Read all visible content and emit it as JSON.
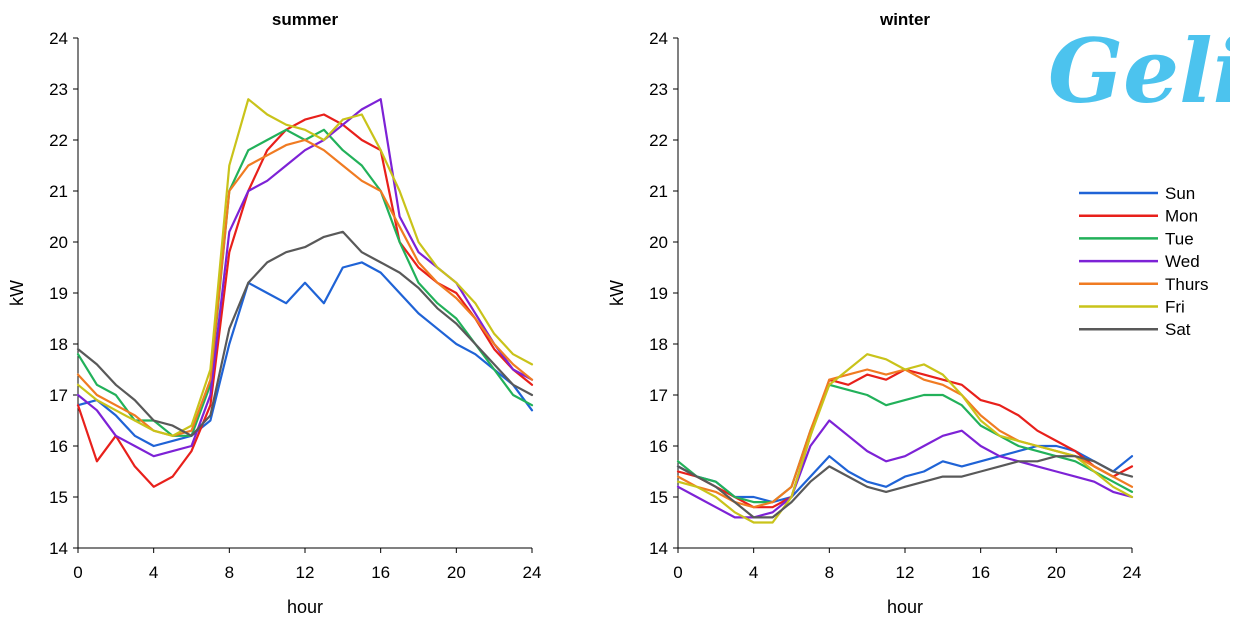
{
  "logo": {
    "text": "Geli",
    "color": "#4cc3ee"
  },
  "colors": {
    "Sun": "#1f63d6",
    "Mon": "#e8201b",
    "Tue": "#22b15a",
    "Wed": "#7d22d6",
    "Thurs": "#f07b22",
    "Fri": "#c9c31a",
    "Sat": "#595959"
  },
  "chart_data": [
    {
      "type": "line",
      "title": "summer",
      "xlabel": "hour",
      "ylabel": "kW",
      "xlim": [
        0,
        24
      ],
      "ylim": [
        14,
        24
      ],
      "xticks": [
        "0",
        "4",
        "8",
        "12",
        "16",
        "20",
        "24"
      ],
      "yticks": [
        "14",
        "15",
        "16",
        "17",
        "18",
        "19",
        "20",
        "21",
        "22",
        "23",
        "24"
      ],
      "x": [
        0,
        1,
        2,
        3,
        4,
        5,
        6,
        7,
        8,
        9,
        10,
        11,
        12,
        13,
        14,
        15,
        16,
        17,
        18,
        19,
        20,
        21,
        22,
        23,
        24
      ],
      "series": [
        {
          "name": "Sun",
          "values": [
            16.8,
            16.9,
            16.6,
            16.2,
            16.0,
            16.1,
            16.2,
            16.5,
            18.0,
            19.2,
            19.0,
            18.8,
            19.2,
            18.8,
            19.5,
            19.6,
            19.4,
            19.0,
            18.6,
            18.3,
            18.0,
            17.8,
            17.5,
            17.2,
            16.7
          ]
        },
        {
          "name": "Mon",
          "values": [
            16.8,
            15.7,
            16.2,
            15.6,
            15.2,
            15.4,
            15.9,
            16.8,
            19.8,
            21.0,
            21.8,
            22.2,
            22.4,
            22.5,
            22.3,
            22.0,
            21.8,
            20.0,
            19.5,
            19.2,
            19.0,
            18.5,
            17.9,
            17.5,
            17.2
          ]
        },
        {
          "name": "Tue",
          "values": [
            17.8,
            17.2,
            17.0,
            16.5,
            16.5,
            16.2,
            16.2,
            17.2,
            21.0,
            21.8,
            22.0,
            22.2,
            22.0,
            22.2,
            21.8,
            21.5,
            21.0,
            20.0,
            19.2,
            18.8,
            18.5,
            18.0,
            17.5,
            17.0,
            16.8
          ]
        },
        {
          "name": "Wed",
          "values": [
            17.0,
            16.7,
            16.2,
            16.0,
            15.8,
            15.9,
            16.0,
            17.0,
            20.2,
            21.0,
            21.2,
            21.5,
            21.8,
            22.0,
            22.3,
            22.6,
            22.8,
            20.5,
            19.8,
            19.5,
            19.2,
            18.6,
            18.0,
            17.5,
            17.3
          ]
        },
        {
          "name": "Thurs",
          "values": [
            17.4,
            17.0,
            16.8,
            16.6,
            16.3,
            16.2,
            16.3,
            17.3,
            21.0,
            21.5,
            21.7,
            21.9,
            22.0,
            21.8,
            21.5,
            21.2,
            21.0,
            20.3,
            19.6,
            19.2,
            18.9,
            18.5,
            18.0,
            17.6,
            17.3
          ]
        },
        {
          "name": "Fri",
          "values": [
            17.2,
            16.9,
            16.7,
            16.5,
            16.3,
            16.2,
            16.4,
            17.5,
            21.5,
            22.8,
            22.5,
            22.3,
            22.2,
            22.0,
            22.4,
            22.5,
            21.8,
            21.0,
            20.0,
            19.5,
            19.2,
            18.8,
            18.2,
            17.8,
            17.6
          ]
        },
        {
          "name": "Sat",
          "values": [
            17.9,
            17.6,
            17.2,
            16.9,
            16.5,
            16.4,
            16.2,
            16.6,
            18.3,
            19.2,
            19.6,
            19.8,
            19.9,
            20.1,
            20.2,
            19.8,
            19.6,
            19.4,
            19.1,
            18.7,
            18.4,
            18.0,
            17.6,
            17.2,
            17.0
          ]
        }
      ]
    },
    {
      "type": "line",
      "title": "winter",
      "xlabel": "hour",
      "ylabel": "kW",
      "xlim": [
        0,
        24
      ],
      "ylim": [
        14,
        24
      ],
      "xticks": [
        "0",
        "4",
        "8",
        "12",
        "16",
        "20",
        "24"
      ],
      "yticks": [
        "14",
        "15",
        "16",
        "17",
        "18",
        "19",
        "20",
        "21",
        "22",
        "23",
        "24"
      ],
      "legend": {
        "position": "top-right",
        "entries": [
          "Sun",
          "Mon",
          "Tue",
          "Wed",
          "Thurs",
          "Fri",
          "Sat"
        ]
      },
      "x": [
        0,
        1,
        2,
        3,
        4,
        5,
        6,
        7,
        8,
        9,
        10,
        11,
        12,
        13,
        14,
        15,
        16,
        17,
        18,
        19,
        20,
        21,
        22,
        23,
        24
      ],
      "series": [
        {
          "name": "Sun",
          "values": [
            15.6,
            15.4,
            15.3,
            15.0,
            15.0,
            14.9,
            15.0,
            15.4,
            15.8,
            15.5,
            15.3,
            15.2,
            15.4,
            15.5,
            15.7,
            15.6,
            15.7,
            15.8,
            15.9,
            16.0,
            16.0,
            15.9,
            15.7,
            15.5,
            15.8
          ]
        },
        {
          "name": "Mon",
          "values": [
            15.5,
            15.4,
            15.2,
            15.0,
            14.8,
            14.8,
            15.0,
            16.2,
            17.3,
            17.2,
            17.4,
            17.3,
            17.5,
            17.4,
            17.3,
            17.2,
            16.9,
            16.8,
            16.6,
            16.3,
            16.1,
            15.9,
            15.6,
            15.4,
            15.6
          ]
        },
        {
          "name": "Tue",
          "values": [
            15.7,
            15.4,
            15.3,
            15.0,
            14.9,
            14.9,
            15.2,
            16.3,
            17.2,
            17.1,
            17.0,
            16.8,
            16.9,
            17.0,
            17.0,
            16.8,
            16.4,
            16.2,
            16.0,
            15.9,
            15.8,
            15.7,
            15.5,
            15.3,
            15.1
          ]
        },
        {
          "name": "Wed",
          "values": [
            15.2,
            15.0,
            14.8,
            14.6,
            14.6,
            14.7,
            15.0,
            16.0,
            16.5,
            16.2,
            15.9,
            15.7,
            15.8,
            16.0,
            16.2,
            16.3,
            16.0,
            15.8,
            15.7,
            15.6,
            15.5,
            15.4,
            15.3,
            15.1,
            15.0
          ]
        },
        {
          "name": "Thurs",
          "values": [
            15.4,
            15.2,
            15.1,
            14.9,
            14.8,
            14.9,
            15.2,
            16.3,
            17.3,
            17.4,
            17.5,
            17.4,
            17.5,
            17.3,
            17.2,
            17.0,
            16.6,
            16.3,
            16.1,
            16.0,
            15.9,
            15.8,
            15.6,
            15.4,
            15.2
          ]
        },
        {
          "name": "Fri",
          "values": [
            15.3,
            15.2,
            15.0,
            14.7,
            14.5,
            14.5,
            15.0,
            16.2,
            17.2,
            17.5,
            17.8,
            17.7,
            17.5,
            17.6,
            17.4,
            17.0,
            16.5,
            16.2,
            16.1,
            16.0,
            15.9,
            15.8,
            15.5,
            15.2,
            15.0
          ]
        },
        {
          "name": "Sat",
          "values": [
            15.6,
            15.4,
            15.2,
            14.9,
            14.6,
            14.6,
            14.9,
            15.3,
            15.6,
            15.4,
            15.2,
            15.1,
            15.2,
            15.3,
            15.4,
            15.4,
            15.5,
            15.6,
            15.7,
            15.7,
            15.8,
            15.8,
            15.7,
            15.5,
            15.4
          ]
        }
      ]
    }
  ]
}
